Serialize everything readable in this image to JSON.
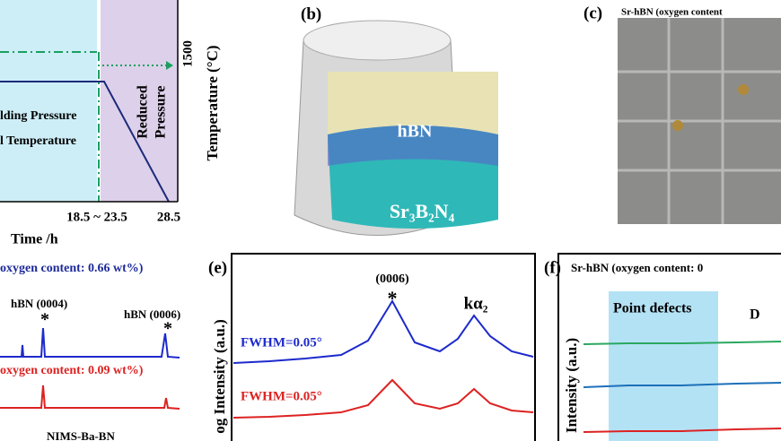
{
  "panel_a": {
    "y_tick": "1500",
    "y_label": "Temperature (°C)",
    "region_label": [
      "Reduced",
      "Pressure"
    ],
    "legend": [
      "lding Pressure",
      "l Temperature"
    ],
    "x_ticks": [
      "18.5 ~ 23.5",
      "28.5"
    ],
    "x_label": "Time /h"
  },
  "panel_b": {
    "tag": "(b)",
    "top_label": "hBN",
    "bottom_label": "Sr₃B₂N₄"
  },
  "panel_c": {
    "tag": "(c)",
    "title": "Sr-hBN (oxygen content"
  },
  "panel_d": {
    "top_sample": "oxygen content: 0.66 wt%)",
    "peak_1": "hBN (0004)",
    "peak_2": "hBN (0006)",
    "peak_marker_1": "*",
    "peak_marker_2": "*",
    "bottom_sample": "oxygen content: 0.09 wt%)",
    "third_sample": "NIMS-Ba-BN"
  },
  "panel_e": {
    "tag": "(e)",
    "peak": "(0006)",
    "peak_marker": "*",
    "satellite": "kα₂",
    "fwhm_top": "FWHM=0.05°",
    "fwhm_bottom": "FWHM=0.05°",
    "y_label": "og Intensity (a.u.)"
  },
  "panel_f": {
    "tag": "(f)",
    "title": "Sr-hBN (oxygen content: 0",
    "region_1": "Point defects",
    "region_2": "D",
    "y_label": "Intensity (a.u.)"
  }
}
